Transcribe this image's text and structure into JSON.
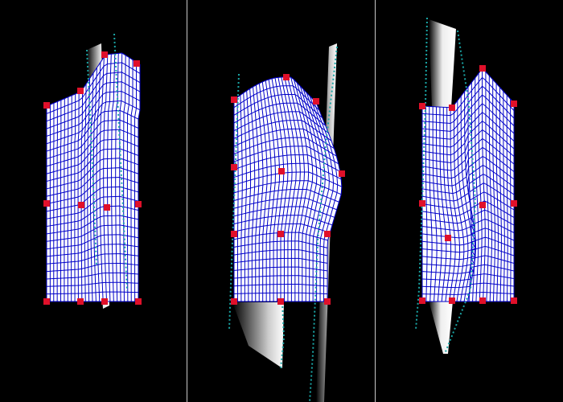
{
  "viewer": {
    "panel_count": 3,
    "colors": {
      "background": "#000000",
      "mesh_fill": "#ffffff",
      "mesh_line": "#0000c8",
      "control_point": "#e0102a",
      "guide_line": "#1aa5a5",
      "divider": "#c8c8c8"
    },
    "icons": [
      "control-point-icon",
      "deformation-mesh-icon",
      "guide-curve-icon"
    ]
  }
}
